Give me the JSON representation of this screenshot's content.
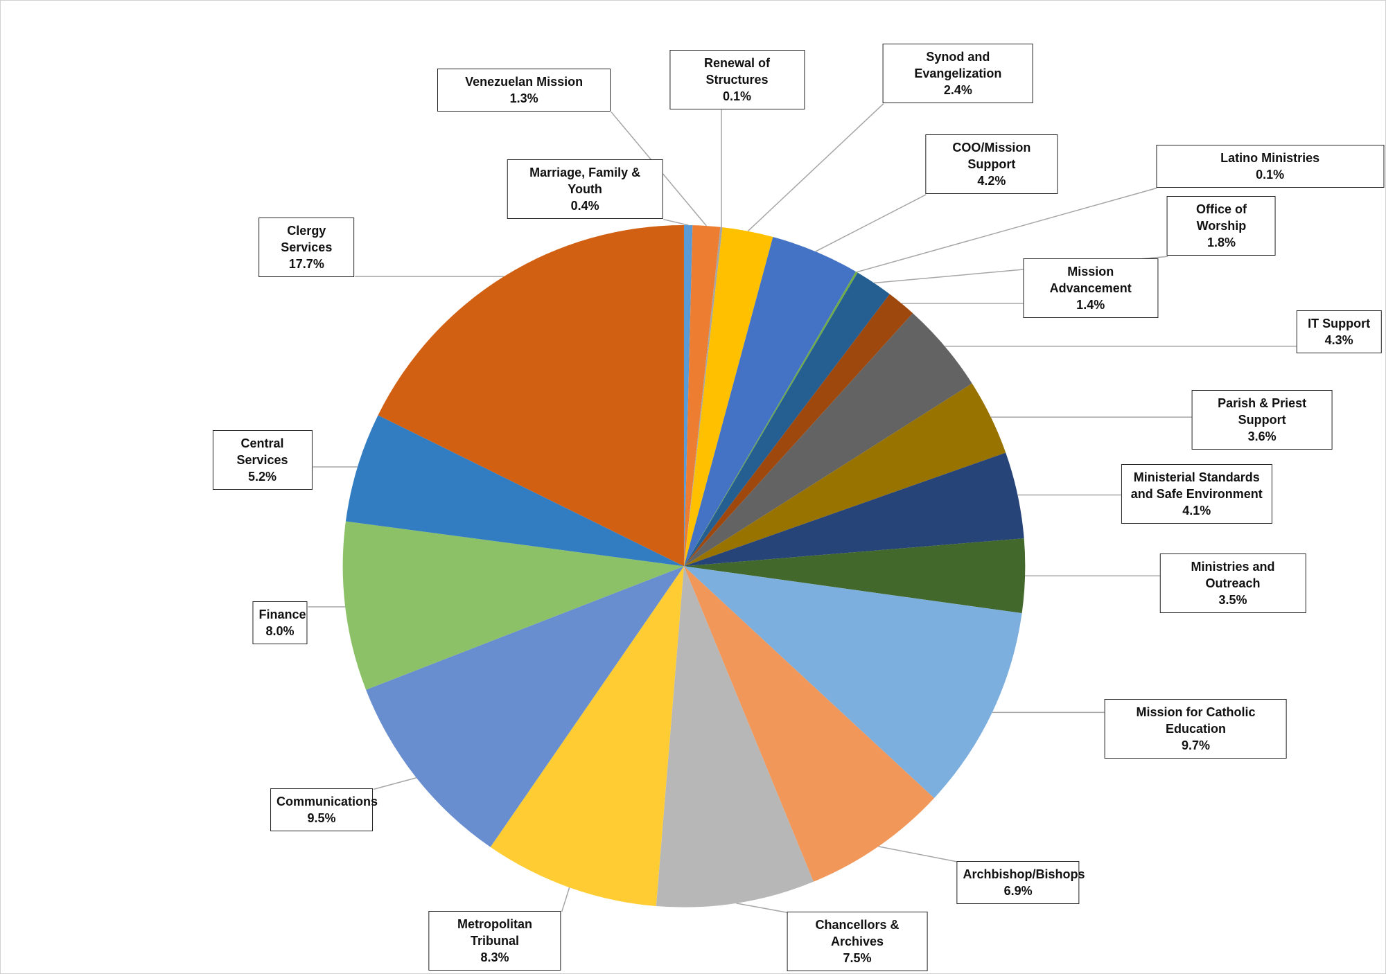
{
  "chart_data": {
    "type": "pie",
    "categories": [
      "Marriage, Family & Youth",
      "Venezuelan Mission",
      "Renewal of Structures",
      "Synod and Evangelization",
      "COO/Mission Support",
      "Latino Ministries",
      "Office of Worship",
      "Mission Advancement",
      "IT Support",
      "Parish & Priest Support",
      "Ministerial Standards and Safe Environment",
      "Ministries and Outreach",
      "Mission for Catholic Education",
      "Archbishop/Bishops",
      "Chancellors & Archives",
      "Metropolitan Tribunal",
      "Communications",
      "Finance",
      "Central Services",
      "Clergy Services"
    ],
    "values": [
      0.4,
      1.3,
      0.1,
      2.4,
      4.2,
      0.1,
      1.8,
      1.4,
      4.3,
      3.6,
      4.1,
      3.5,
      9.7,
      6.9,
      7.5,
      8.3,
      9.5,
      8.0,
      5.2,
      17.7
    ],
    "value_labels": [
      "0.4%",
      "1.3%",
      "0.1%",
      "2.4%",
      "4.2%",
      "0.1%",
      "1.8%",
      "1.4%",
      "4.3%",
      "3.6%",
      "4.1%",
      "3.5%",
      "9.7%",
      "6.9%",
      "7.5%",
      "8.3%",
      "9.5%",
      "8.0%",
      "5.2%",
      "17.7%"
    ],
    "colors": [
      "#5b9bd5",
      "#ed7d31",
      "#a5a5a5",
      "#ffc000",
      "#4472c4",
      "#70ad47",
      "#255e91",
      "#9e480e",
      "#636363",
      "#997300",
      "#264478",
      "#43682b",
      "#7cafdd",
      "#f1975a",
      "#b7b7b7",
      "#ffcd33",
      "#698ed0",
      "#8cc168",
      "#327dc2",
      "#d26012"
    ]
  }
}
